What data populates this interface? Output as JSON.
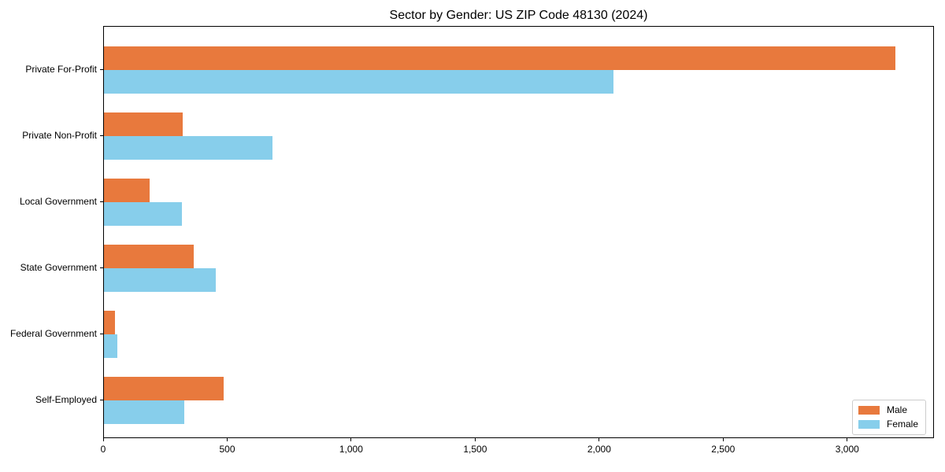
{
  "chart_data": {
    "type": "bar",
    "orientation": "horizontal",
    "title": "Sector by Gender: US ZIP Code 48130 (2024)",
    "categories": [
      "Private For-Profit",
      "Private Non-Profit",
      "Local Government",
      "State Government",
      "Federal Government",
      "Self-Employed"
    ],
    "series": [
      {
        "name": "Male",
        "color": "#e8793d",
        "values": [
          3190,
          318,
          185,
          362,
          44,
          482
        ]
      },
      {
        "name": "Female",
        "color": "#87ceeb",
        "values": [
          2055,
          680,
          313,
          451,
          53,
          325
        ]
      }
    ],
    "xlabel": "",
    "ylabel": "",
    "xlim": [
      0,
      3350
    ],
    "xticks": [
      0,
      500,
      1000,
      1500,
      2000,
      2500,
      3000
    ],
    "xtick_labels": [
      "0",
      "500",
      "1,000",
      "1,500",
      "2,000",
      "2,500",
      "3,000"
    ],
    "grid": false,
    "legend": {
      "position": "lower right",
      "entries": [
        "Male",
        "Female"
      ]
    }
  }
}
